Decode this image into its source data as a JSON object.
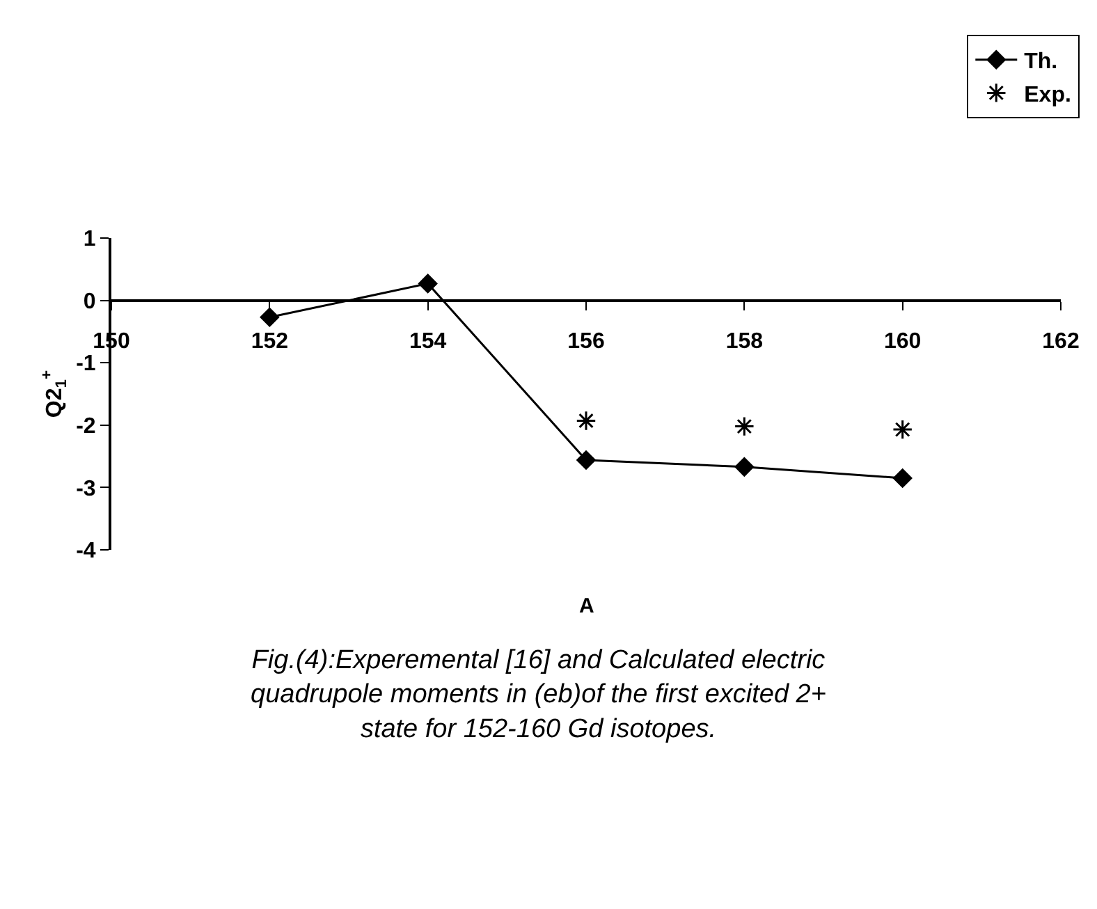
{
  "chart_data": {
    "type": "line",
    "xlabel": "A",
    "ylabel": "Q2$_{1}$$^{+}$",
    "x": [
      152,
      154,
      156,
      158,
      160
    ],
    "series": [
      {
        "name": "Th.",
        "color": "#000000",
        "marker": "diamond",
        "line_style": "solid",
        "values": [
          -0.27,
          0.27,
          -2.56,
          -2.67,
          -2.85
        ]
      },
      {
        "name": "Exp.",
        "type": "scatter",
        "color": "#000000",
        "marker": "cross",
        "x": [
          156,
          158,
          160
        ],
        "values": [
          -1.93,
          -2.02,
          -2.07
        ]
      }
    ],
    "xlim": [
      150,
      162
    ],
    "xticks": [
      150,
      152,
      154,
      156,
      158,
      160,
      162
    ],
    "ylim": [
      -4,
      1
    ],
    "yticks": [
      -4,
      -3,
      -2,
      -1,
      0,
      1
    ],
    "grid": false,
    "legend": "top right",
    "annotations": [
      "Fig.(4):Experemental [16] and Calculated electric quadrupole moments in (eb)of the first excited 2+ state for 152-160 Gd isotopes."
    ]
  }
}
